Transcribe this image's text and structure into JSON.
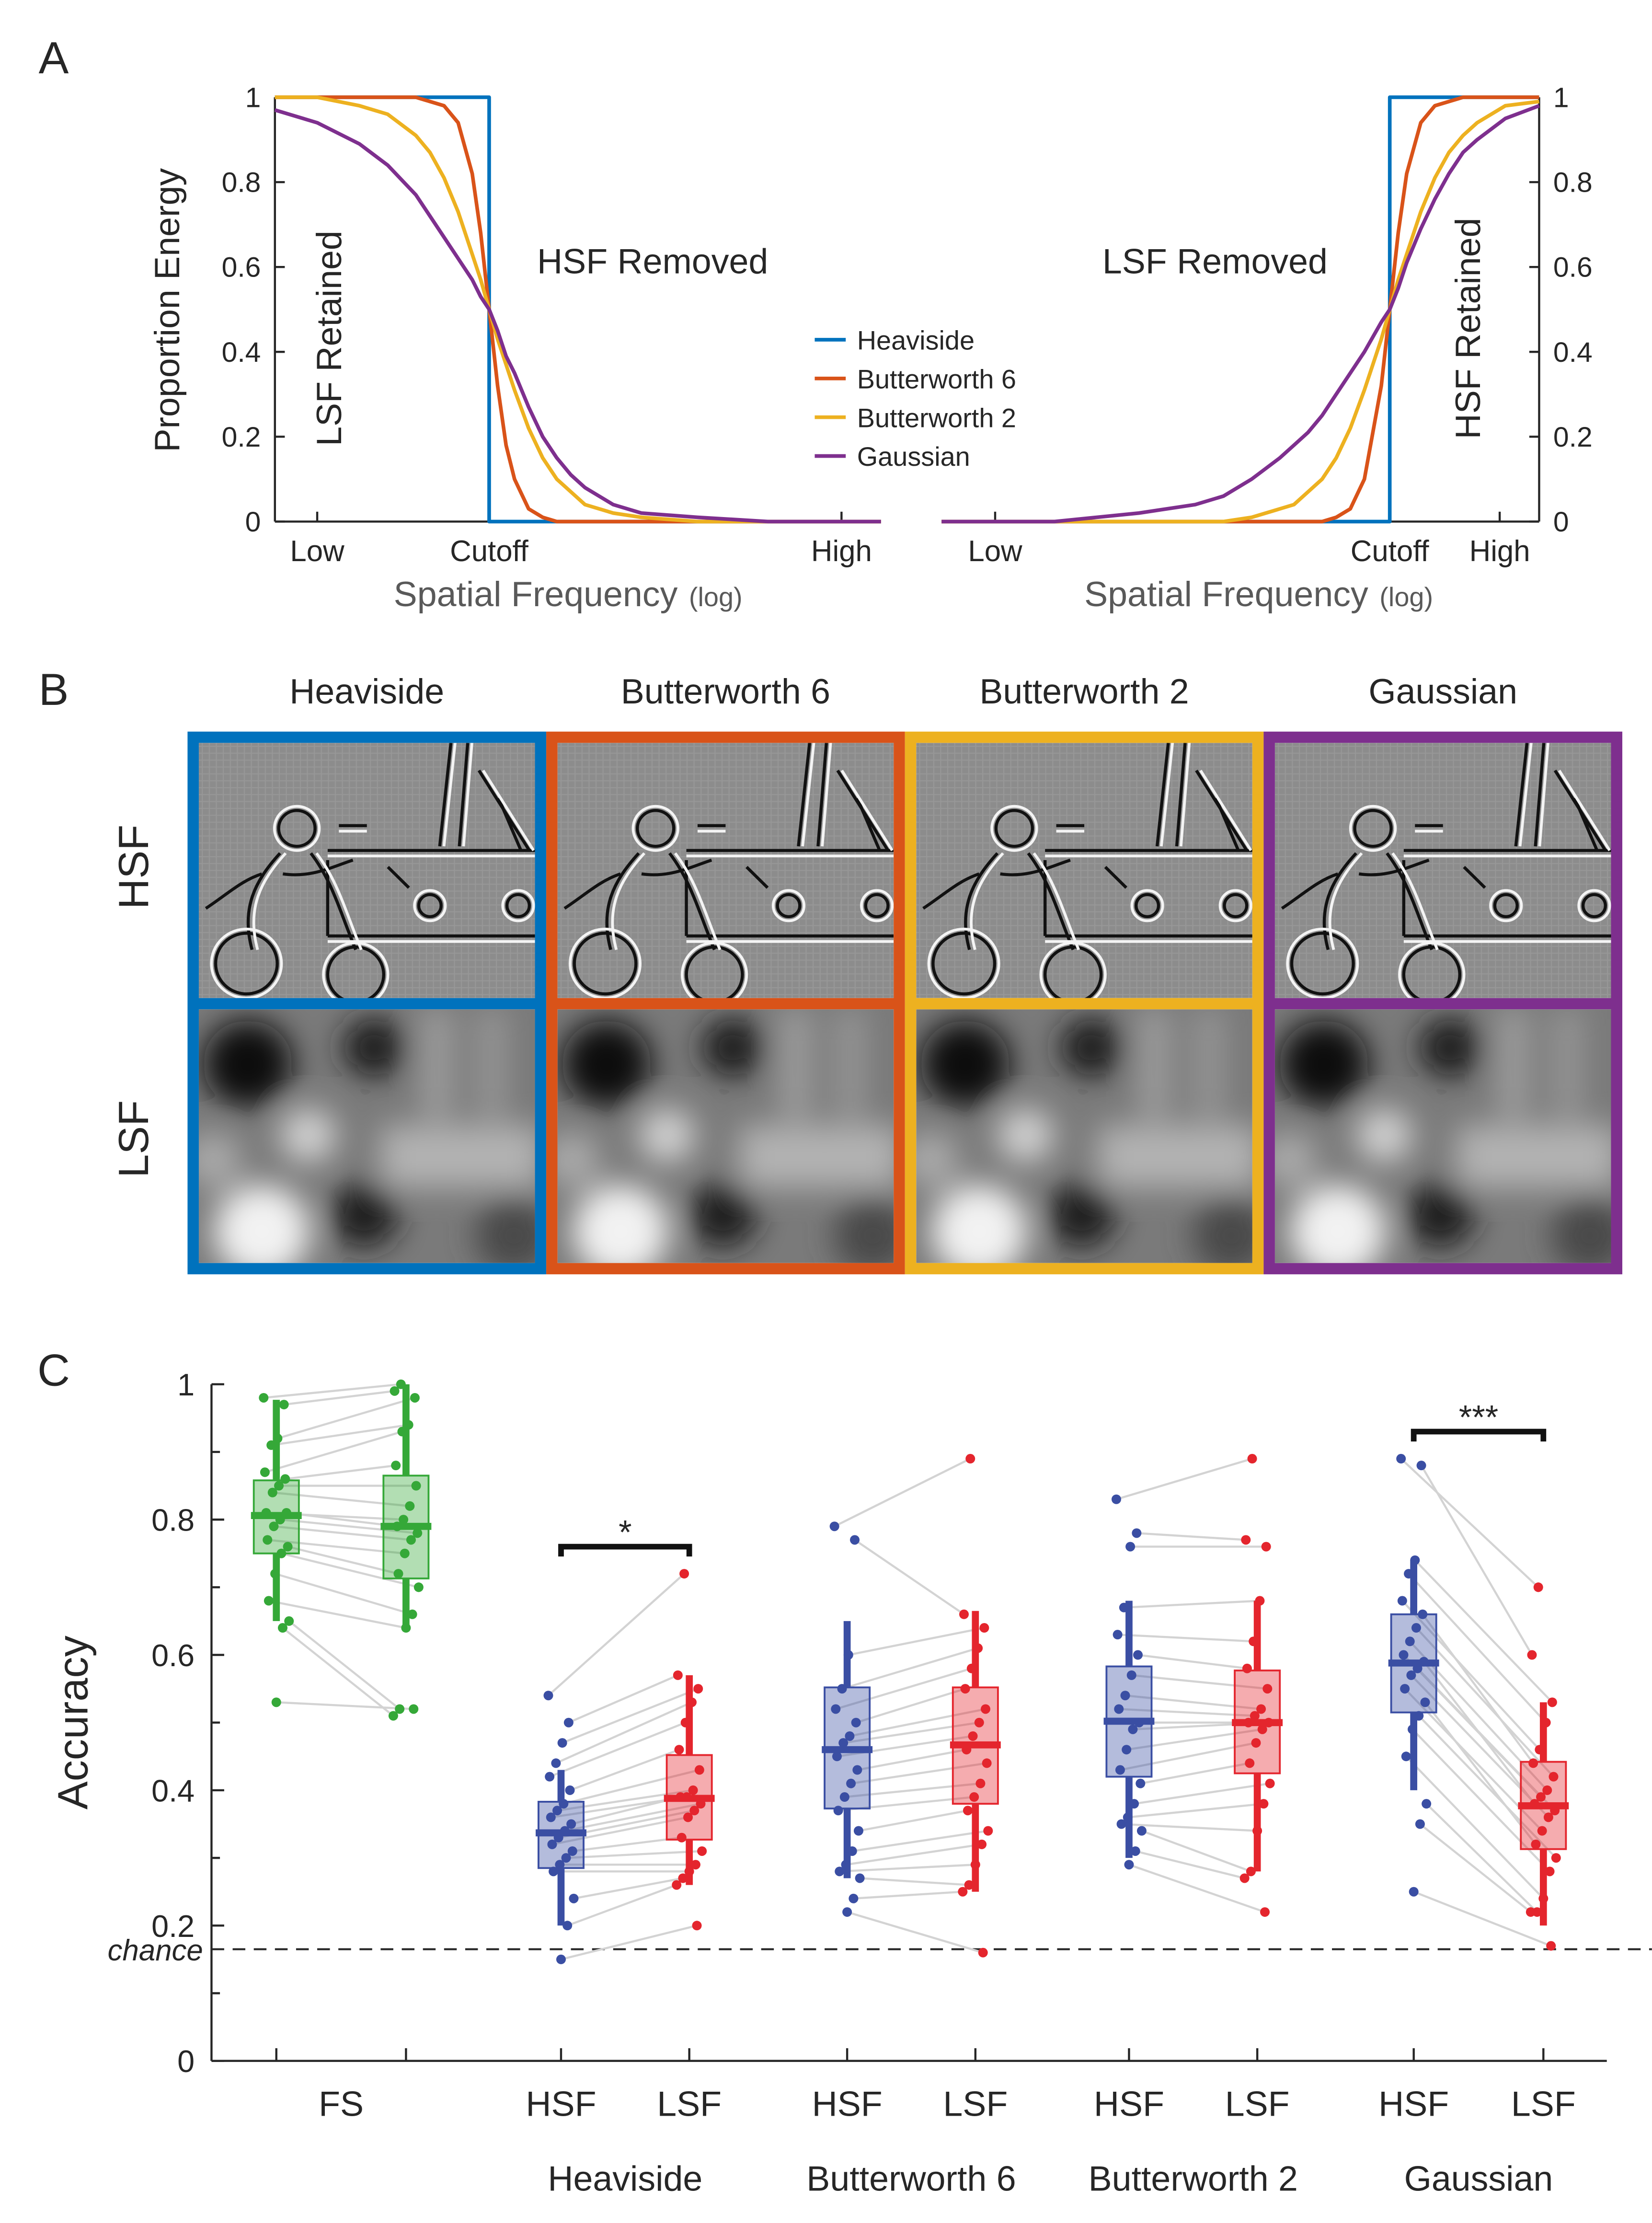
{
  "chart_data": [
    {
      "type": "line",
      "panel_label": "A",
      "y_label": "Proportion Energy",
      "x_label": "Spatial Frequency",
      "x_label_note": "(log)",
      "y_axis": "left",
      "annotations": [
        "LSF Retained",
        "HSF Removed"
      ],
      "x": [
        0,
        3,
        6,
        8,
        10,
        11,
        12,
        13,
        14,
        14.6,
        15.2,
        15.2,
        15.8,
        16.4,
        17,
        18,
        19,
        20,
        21,
        22,
        24,
        26,
        30,
        35,
        43
      ],
      "xlim": [
        0,
        43
      ],
      "xticks": [
        {
          "value": 3,
          "label": "Low"
        },
        {
          "value": 15.2,
          "label": "Cutoff"
        },
        {
          "value": 40.2,
          "label": "High"
        }
      ],
      "ylim": [
        0,
        1
      ],
      "yticks": [
        0,
        0.2,
        0.4,
        0.6,
        0.8,
        1
      ],
      "series": [
        {
          "name": "Heaviside",
          "color": "#0072BD",
          "values": [
            1,
            1,
            1,
            1,
            1,
            1,
            1,
            1,
            1,
            1,
            1,
            0,
            0,
            0,
            0,
            0,
            0,
            0,
            0,
            0,
            0,
            0,
            0,
            0,
            0
          ]
        },
        {
          "name": "Butterworth 6",
          "color": "#D95319",
          "values": [
            1,
            1,
            1,
            1,
            1,
            0.99,
            0.98,
            0.94,
            0.82,
            0.68,
            0.5,
            0.5,
            0.32,
            0.18,
            0.1,
            0.03,
            0.01,
            0,
            0,
            0,
            0,
            0,
            0,
            0,
            0
          ]
        },
        {
          "name": "Butterworth 2",
          "color": "#EDB120",
          "values": [
            1,
            1,
            0.98,
            0.96,
            0.91,
            0.87,
            0.81,
            0.73,
            0.63,
            0.57,
            0.5,
            0.5,
            0.43,
            0.37,
            0.31,
            0.22,
            0.15,
            0.1,
            0.07,
            0.04,
            0.02,
            0.01,
            0,
            0,
            0
          ]
        },
        {
          "name": "Gaussian",
          "color": "#7E2F8E",
          "values": [
            0.97,
            0.94,
            0.89,
            0.84,
            0.77,
            0.72,
            0.67,
            0.62,
            0.57,
            0.53,
            0.5,
            0.5,
            0.45,
            0.39,
            0.35,
            0.27,
            0.2,
            0.15,
            0.11,
            0.08,
            0.04,
            0.02,
            0.01,
            0,
            0
          ]
        }
      ]
    },
    {
      "type": "line",
      "x_label": "Spatial Frequency",
      "x_label_note": "(log)",
      "y_axis": "right",
      "annotations": [
        "LSF Removed",
        "HSF Retained"
      ],
      "x": [
        0,
        8,
        14,
        18,
        20,
        22,
        24,
        25,
        26,
        27,
        28,
        29,
        30,
        31.2,
        31.8,
        31.8,
        32.4,
        33,
        34,
        35,
        36,
        37,
        38,
        40,
        42.4
      ],
      "xlim": [
        0,
        42.4
      ],
      "xticks": [
        {
          "value": 3.8,
          "label": "Low"
        },
        {
          "value": 31.8,
          "label": "Cutoff"
        },
        {
          "value": 39.6,
          "label": "High"
        }
      ],
      "ylim": [
        0,
        1
      ],
      "yticks": [
        0,
        0.2,
        0.4,
        0.6,
        0.8,
        1
      ],
      "series": [
        {
          "color": "#0072BD",
          "values": [
            0,
            0,
            0,
            0,
            0,
            0,
            0,
            0,
            0,
            0,
            0,
            0,
            0,
            0,
            0,
            1,
            1,
            1,
            1,
            1,
            1,
            1,
            1,
            1,
            1
          ]
        },
        {
          "color": "#D95319",
          "values": [
            0,
            0,
            0,
            0,
            0,
            0,
            0,
            0,
            0,
            0,
            0.01,
            0.03,
            0.1,
            0.32,
            0.5,
            0.5,
            0.68,
            0.82,
            0.94,
            0.98,
            0.99,
            1,
            1,
            1,
            1
          ]
        },
        {
          "color": "#EDB120",
          "values": [
            0,
            0,
            0,
            0,
            0,
            0.01,
            0.03,
            0.04,
            0.07,
            0.1,
            0.15,
            0.22,
            0.31,
            0.43,
            0.5,
            0.5,
            0.57,
            0.63,
            0.73,
            0.81,
            0.87,
            0.91,
            0.94,
            0.98,
            0.99
          ]
        },
        {
          "color": "#7E2F8E",
          "values": [
            0,
            0,
            0.02,
            0.04,
            0.06,
            0.1,
            0.15,
            0.18,
            0.21,
            0.25,
            0.3,
            0.35,
            0.4,
            0.47,
            0.5,
            0.5,
            0.55,
            0.61,
            0.69,
            0.76,
            0.82,
            0.87,
            0.9,
            0.95,
            0.98
          ]
        }
      ]
    },
    {
      "type": "box",
      "panel_label": "C",
      "y_label": "Accuracy",
      "ylim": [
        0,
        1
      ],
      "yticks": [
        0,
        0.2,
        0.4,
        0.6,
        0.8,
        1
      ],
      "yminorticks": [
        0.1,
        0.3,
        0.5,
        0.7,
        0.9
      ],
      "reference_line": {
        "label": "chance",
        "value": 0.165
      },
      "groups": [
        {
          "label": "FS",
          "boxes": [
            {
              "color": "#35a838",
              "q1": 0.75,
              "median": 0.806,
              "q3": 0.858,
              "whisker_low": 0.65,
              "whisker_high": 0.977,
              "points": [
                0.98,
                0.97,
                0.92,
                0.91,
                0.87,
                0.86,
                0.85,
                0.84,
                0.81,
                0.81,
                0.8,
                0.79,
                0.77,
                0.76,
                0.75,
                0.72,
                0.68,
                0.65,
                0.64,
                0.53
              ]
            },
            {
              "color": "#35a838",
              "q1": 0.713,
              "median": 0.79,
              "q3": 0.865,
              "whisker_low": 0.635,
              "whisker_high": 1,
              "points": [
                1,
                0.99,
                0.98,
                0.94,
                0.93,
                0.88,
                0.85,
                0.82,
                0.8,
                0.79,
                0.78,
                0.77,
                0.75,
                0.72,
                0.7,
                0.66,
                0.64,
                0.52,
                0.51,
                0.52
              ]
            }
          ]
        },
        {
          "label": "Heaviside",
          "significance": {
            "label": "*",
            "value": 0.76
          },
          "boxes": [
            {
              "label": "HSF",
              "color": "#3a4ea3",
              "q1": 0.285,
              "median": 0.337,
              "q3": 0.383,
              "whisker_low": 0.2,
              "whisker_high": 0.43,
              "points": [
                0.54,
                0.5,
                0.47,
                0.44,
                0.42,
                0.4,
                0.38,
                0.37,
                0.36,
                0.35,
                0.34,
                0.33,
                0.32,
                0.31,
                0.3,
                0.29,
                0.28,
                0.24,
                0.2,
                0.15
              ]
            },
            {
              "label": "LSF",
              "color": "#e4252d",
              "q1": 0.327,
              "median": 0.388,
              "q3": 0.452,
              "whisker_low": 0.26,
              "whisker_high": 0.57,
              "points": [
                0.72,
                0.57,
                0.55,
                0.53,
                0.5,
                0.46,
                0.43,
                0.4,
                0.39,
                0.39,
                0.38,
                0.37,
                0.36,
                0.33,
                0.31,
                0.29,
                0.28,
                0.27,
                0.26,
                0.2
              ]
            }
          ]
        },
        {
          "label": "Butterworth 6",
          "boxes": [
            {
              "label": "HSF",
              "color": "#3a4ea3",
              "q1": 0.373,
              "median": 0.46,
              "q3": 0.552,
              "whisker_low": 0.27,
              "whisker_high": 0.65,
              "points": [
                0.79,
                0.77,
                0.6,
                0.55,
                0.52,
                0.5,
                0.48,
                0.47,
                0.45,
                0.43,
                0.41,
                0.39,
                0.37,
                0.34,
                0.31,
                0.29,
                0.28,
                0.27,
                0.24,
                0.22
              ]
            },
            {
              "label": "LSF",
              "color": "#e4252d",
              "q1": 0.38,
              "median": 0.467,
              "q3": 0.552,
              "whisker_low": 0.25,
              "whisker_high": 0.665,
              "points": [
                0.89,
                0.66,
                0.64,
                0.61,
                0.58,
                0.55,
                0.52,
                0.5,
                0.48,
                0.46,
                0.44,
                0.41,
                0.39,
                0.37,
                0.34,
                0.32,
                0.29,
                0.26,
                0.25,
                0.16
              ]
            }
          ]
        },
        {
          "label": "Butterworth 2",
          "boxes": [
            {
              "label": "HSF",
              "color": "#3a4ea3",
              "q1": 0.42,
              "median": 0.502,
              "q3": 0.583,
              "whisker_low": 0.3,
              "whisker_high": 0.68,
              "points": [
                0.83,
                0.78,
                0.76,
                0.67,
                0.63,
                0.6,
                0.57,
                0.54,
                0.52,
                0.5,
                0.49,
                0.46,
                0.43,
                0.41,
                0.38,
                0.36,
                0.35,
                0.34,
                0.31,
                0.29
              ]
            },
            {
              "label": "LSF",
              "color": "#e4252d",
              "q1": 0.425,
              "median": 0.5,
              "q3": 0.577,
              "whisker_low": 0.28,
              "whisker_high": 0.68,
              "points": [
                0.89,
                0.77,
                0.76,
                0.68,
                0.62,
                0.58,
                0.55,
                0.52,
                0.51,
                0.5,
                0.5,
                0.49,
                0.47,
                0.44,
                0.41,
                0.38,
                0.34,
                0.28,
                0.27,
                0.22
              ]
            }
          ]
        },
        {
          "label": "Gaussian",
          "significance": {
            "label": "***",
            "value": 0.93
          },
          "boxes": [
            {
              "label": "HSF",
              "color": "#3a4ea3",
              "q1": 0.515,
              "median": 0.588,
              "q3": 0.66,
              "whisker_low": 0.4,
              "whisker_high": 0.74,
              "points": [
                0.89,
                0.88,
                0.74,
                0.72,
                0.68,
                0.66,
                0.64,
                0.62,
                0.6,
                0.59,
                0.58,
                0.57,
                0.55,
                0.53,
                0.51,
                0.49,
                0.45,
                0.38,
                0.35,
                0.25
              ]
            },
            {
              "label": "LSF",
              "color": "#e4252d",
              "q1": 0.313,
              "median": 0.377,
              "q3": 0.442,
              "whisker_low": 0.2,
              "whisker_high": 0.53,
              "points": [
                0.7,
                0.6,
                0.53,
                0.5,
                0.46,
                0.44,
                0.42,
                0.4,
                0.39,
                0.38,
                0.37,
                0.36,
                0.34,
                0.32,
                0.3,
                0.28,
                0.24,
                0.22,
                0.22,
                0.17
              ]
            }
          ]
        }
      ]
    }
  ],
  "image_grid": {
    "panel_label": "B",
    "columns": [
      "Heaviside",
      "Butterworth 6",
      "Butterworth 2",
      "Gaussian"
    ],
    "rows": [
      "HSF",
      "LSF"
    ],
    "frame_colors": [
      "#0072BD",
      "#D95319",
      "#EDB120",
      "#7E2F8E"
    ]
  }
}
